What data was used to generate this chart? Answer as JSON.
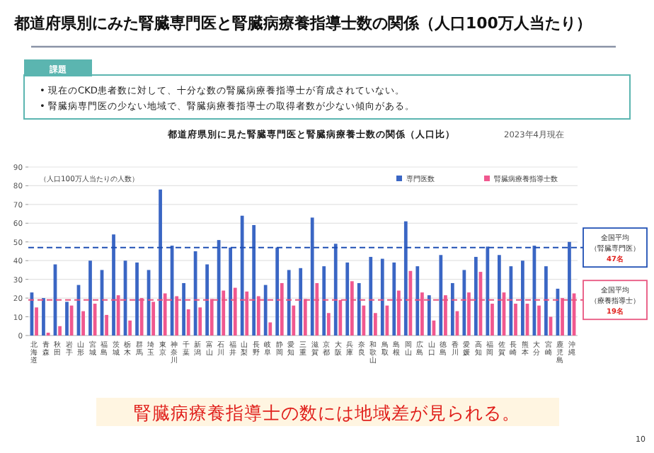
{
  "chart_data": {
    "type": "bar",
    "title": "都道府県別にみた腎臓専門医と腎臓病療養指導士数の関係（人口100万人当たり）",
    "subtitle": "都道府県別に見た腎臓専門医と腎臓病療養士数の関係（人口比）",
    "ylabel": "（人口100万人当たりの人数）",
    "annotations": [
      "課題",
      "• 現在のCKD患者数に対して、十分な数の腎臓病療養指導士が育成されていない。",
      "• 腎臓病専門医の少ない地域で、腎臓病療養指導士の取得者数が少ない傾向がある。",
      "2023年4月現在",
      "腎臓病療養指導士の数には地域差が見られる。",
      "10"
    ],
    "categories": [
      "北海道",
      "青森",
      "秋田",
      "岩手",
      "山形",
      "宮城",
      "福島",
      "茨城",
      "栃木",
      "群馬",
      "埼玉",
      "東京",
      "神奈川",
      "千葉",
      "新潟",
      "富山",
      "石川",
      "福井",
      "山梨",
      "長野",
      "岐阜",
      "静岡",
      "愛知",
      "三重",
      "滋賀",
      "京都",
      "大阪",
      "兵庫",
      "奈良",
      "和歌山",
      "鳥取",
      "島根",
      "岡山",
      "広島",
      "山口",
      "徳島",
      "香川",
      "愛媛",
      "高知",
      "福岡",
      "佐賀",
      "長崎",
      "熊本",
      "大分",
      "宮崎",
      "鹿児島",
      "沖縄"
    ],
    "series": [
      {
        "name": "専門医数",
        "color": "#3a66c4",
        "values": [
          23,
          20,
          38,
          18,
          27,
          40,
          35,
          54,
          40,
          39,
          35,
          78,
          48,
          28,
          45,
          38,
          51,
          47,
          64,
          59,
          27,
          47,
          35,
          36,
          63,
          37,
          49,
          39,
          28,
          42,
          41,
          39,
          61,
          37,
          21.5,
          43,
          28,
          35,
          42,
          47.5,
          43,
          37,
          40,
          48,
          37,
          25,
          50
        ]
      },
      {
        "name": "腎臓病療養指導士数",
        "color": "#f0588f",
        "values": [
          15,
          1.5,
          5,
          16,
          13,
          17,
          11,
          21.5,
          8,
          20,
          18,
          22.5,
          21,
          14,
          15,
          19.5,
          24,
          25.5,
          23.5,
          21,
          7,
          28,
          16,
          19.5,
          28,
          12,
          19,
          29,
          16,
          12,
          16,
          24,
          34.5,
          23,
          8,
          21.5,
          13,
          23,
          34,
          17,
          23,
          17,
          17,
          16,
          10,
          20,
          22.5
        ]
      }
    ],
    "ylim": [
      0,
      90
    ],
    "yticks": [
      0,
      10,
      20,
      30,
      40,
      50,
      60,
      70,
      80,
      90
    ],
    "grid": "y",
    "legend": "top right",
    "ref_lines": [
      {
        "axis": "y",
        "value": 47,
        "label": "全国平均（腎臓専門医）47名",
        "color": "#1f4fb4",
        "line_style": "dashed"
      },
      {
        "axis": "y",
        "value": 19,
        "label": "全国平均（療養指導士）19名",
        "color": "#e8557f",
        "line_style": "dashed"
      }
    ]
  }
}
